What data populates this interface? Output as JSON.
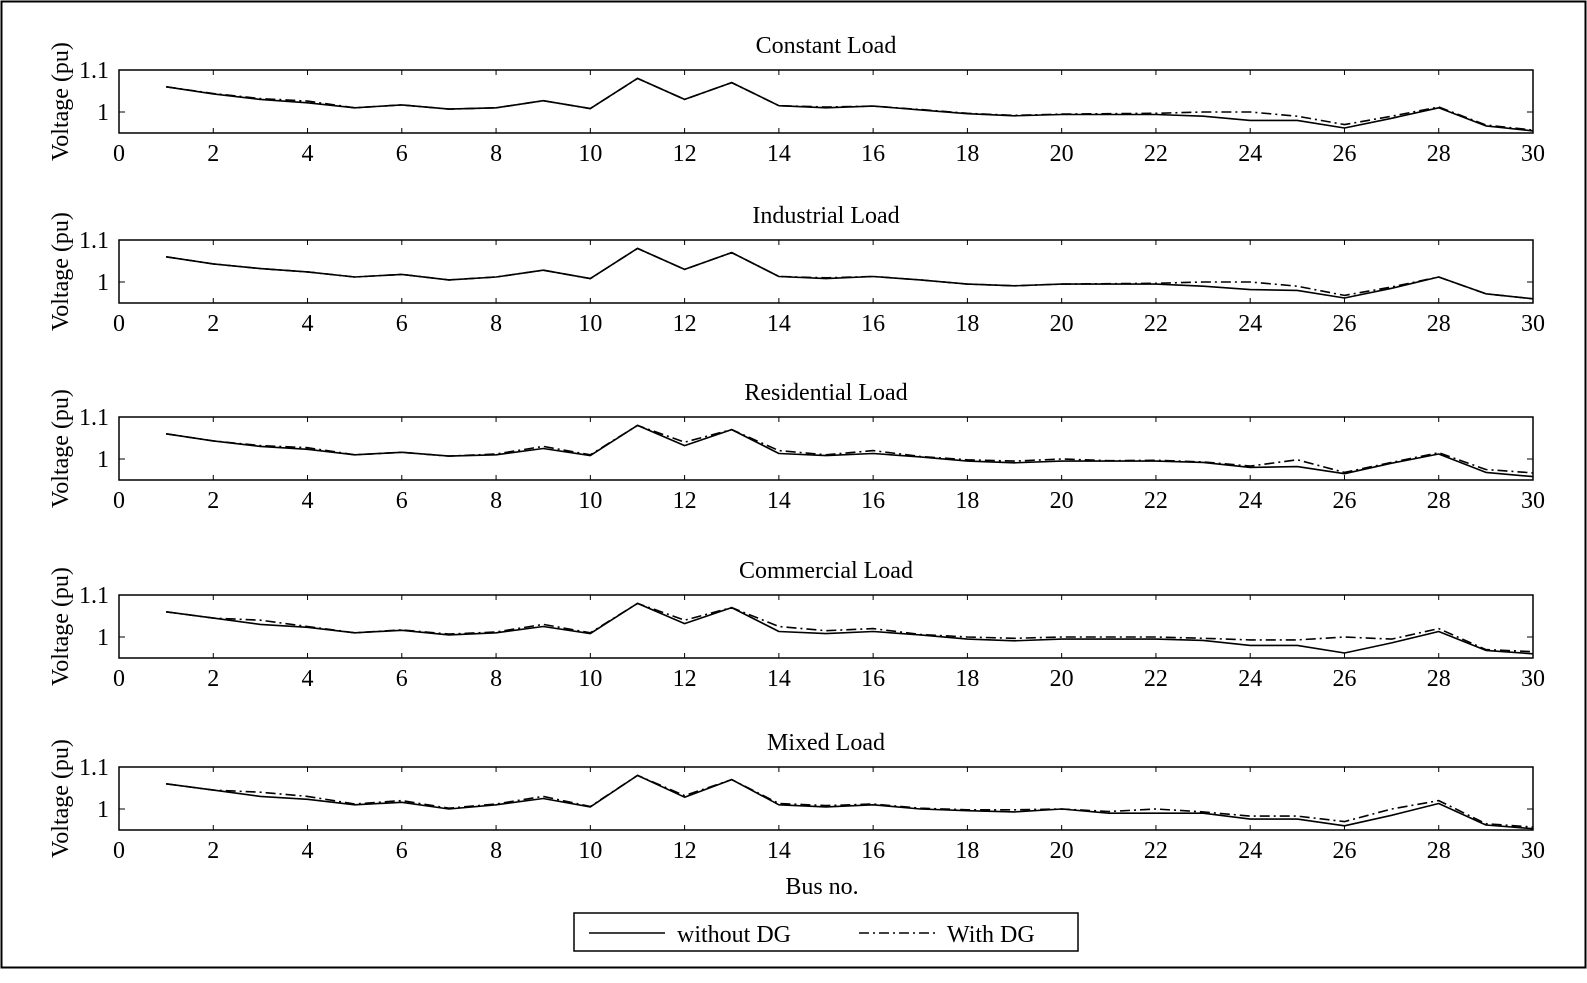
{
  "figure": {
    "xlabel": "Bus no.",
    "legend": {
      "placement": "bottom-center",
      "entries": [
        {
          "name": "without DG",
          "style": "solid"
        },
        {
          "name": "With DG",
          "style": "dash-dot"
        }
      ]
    },
    "colors": {
      "line": "#000000",
      "background": "#ffffff"
    }
  },
  "chart_data": [
    {
      "type": "line",
      "title": "Constant Load",
      "ylabel": "Voltage (pu)",
      "xlim": [
        0,
        30
      ],
      "ylim": [
        0.95,
        1.1
      ],
      "xticks": [
        0,
        2,
        4,
        6,
        8,
        10,
        12,
        14,
        16,
        18,
        20,
        22,
        24,
        26,
        28,
        30
      ],
      "yticks": [
        1,
        1.1
      ],
      "ytick_labels": [
        "1",
        "1.1"
      ],
      "grid": false,
      "x": [
        1,
        2,
        3,
        4,
        5,
        6,
        7,
        8,
        9,
        10,
        11,
        12,
        13,
        14,
        15,
        16,
        17,
        18,
        19,
        20,
        21,
        22,
        23,
        24,
        25,
        26,
        27,
        28,
        29,
        30
      ],
      "series": [
        {
          "name": "without DG",
          "style": "solid",
          "values": [
            1.06,
            1.043,
            1.03,
            1.022,
            1.01,
            1.017,
            1.007,
            1.01,
            1.027,
            1.008,
            1.08,
            1.03,
            1.07,
            1.015,
            1.01,
            1.014,
            1.005,
            0.996,
            0.991,
            0.994,
            0.994,
            0.994,
            0.99,
            0.98,
            0.98,
            0.962,
            0.985,
            1.01,
            0.967,
            0.955
          ]
        },
        {
          "name": "With DG",
          "style": "dash-dot",
          "values": [
            1.06,
            1.044,
            1.032,
            1.026,
            1.01,
            1.017,
            1.007,
            1.01,
            1.027,
            1.008,
            1.08,
            1.03,
            1.07,
            1.015,
            1.012,
            1.014,
            1.006,
            0.997,
            0.992,
            0.995,
            0.996,
            0.997,
            1.0,
            1.0,
            0.99,
            0.97,
            0.99,
            1.012,
            0.969,
            0.957
          ]
        }
      ]
    },
    {
      "type": "line",
      "title": "Industrial Load",
      "ylabel": "Voltage (pu)",
      "xlim": [
        0,
        30
      ],
      "ylim": [
        0.95,
        1.1
      ],
      "xticks": [
        0,
        2,
        4,
        6,
        8,
        10,
        12,
        14,
        16,
        18,
        20,
        22,
        24,
        26,
        28,
        30
      ],
      "yticks": [
        1,
        1.1
      ],
      "ytick_labels": [
        "1",
        "1.1"
      ],
      "grid": false,
      "x": [
        1,
        2,
        3,
        4,
        5,
        6,
        7,
        8,
        9,
        10,
        11,
        12,
        13,
        14,
        15,
        16,
        17,
        18,
        19,
        20,
        21,
        22,
        23,
        24,
        25,
        26,
        27,
        28,
        29,
        30
      ],
      "series": [
        {
          "name": "without DG",
          "style": "solid",
          "values": [
            1.06,
            1.043,
            1.032,
            1.024,
            1.012,
            1.018,
            1.005,
            1.012,
            1.028,
            1.008,
            1.08,
            1.03,
            1.07,
            1.013,
            1.008,
            1.013,
            1.005,
            0.995,
            0.991,
            0.995,
            0.995,
            0.995,
            0.99,
            0.982,
            0.98,
            0.962,
            0.985,
            1.012,
            0.972,
            0.96
          ]
        },
        {
          "name": "With DG",
          "style": "dash-dot",
          "values": [
            1.06,
            1.043,
            1.032,
            1.024,
            1.012,
            1.018,
            1.005,
            1.012,
            1.028,
            1.008,
            1.08,
            1.03,
            1.07,
            1.013,
            1.01,
            1.013,
            1.005,
            0.995,
            0.991,
            0.995,
            0.996,
            0.997,
            1.0,
            1.0,
            0.99,
            0.968,
            0.988,
            1.012,
            0.972,
            0.96
          ]
        }
      ]
    },
    {
      "type": "line",
      "title": "Residential Load",
      "ylabel": "Voltage (pu)",
      "xlim": [
        0,
        30
      ],
      "ylim": [
        0.95,
        1.1
      ],
      "xticks": [
        0,
        2,
        4,
        6,
        8,
        10,
        12,
        14,
        16,
        18,
        20,
        22,
        24,
        26,
        28,
        30
      ],
      "yticks": [
        1,
        1.1
      ],
      "ytick_labels": [
        "1",
        "1.1"
      ],
      "grid": false,
      "x": [
        1,
        2,
        3,
        4,
        5,
        6,
        7,
        8,
        9,
        10,
        11,
        12,
        13,
        14,
        15,
        16,
        17,
        18,
        19,
        20,
        21,
        22,
        23,
        24,
        25,
        26,
        27,
        28,
        29,
        30
      ],
      "series": [
        {
          "name": "without DG",
          "style": "solid",
          "values": [
            1.06,
            1.043,
            1.03,
            1.023,
            1.01,
            1.016,
            1.007,
            1.01,
            1.025,
            1.008,
            1.08,
            1.032,
            1.07,
            1.013,
            1.008,
            1.013,
            1.005,
            0.995,
            0.991,
            0.995,
            0.995,
            0.995,
            0.992,
            0.98,
            0.982,
            0.965,
            0.99,
            1.012,
            0.968,
            0.958
          ]
        },
        {
          "name": "With DG",
          "style": "dash-dot",
          "values": [
            1.06,
            1.043,
            1.032,
            1.027,
            1.01,
            1.016,
            1.007,
            1.012,
            1.03,
            1.01,
            1.08,
            1.04,
            1.07,
            1.02,
            1.01,
            1.02,
            1.006,
            0.998,
            0.995,
            1.0,
            0.996,
            0.997,
            0.993,
            0.983,
            0.998,
            0.968,
            0.992,
            1.015,
            0.975,
            0.967
          ]
        }
      ]
    },
    {
      "type": "line",
      "title": "Commercial Load",
      "ylabel": "Voltage (pu)",
      "xlim": [
        0,
        30
      ],
      "ylim": [
        0.95,
        1.1
      ],
      "xticks": [
        0,
        2,
        4,
        6,
        8,
        10,
        12,
        14,
        16,
        18,
        20,
        22,
        24,
        26,
        28,
        30
      ],
      "yticks": [
        1,
        1.1
      ],
      "ytick_labels": [
        "1",
        "1.1"
      ],
      "grid": false,
      "x": [
        1,
        2,
        3,
        4,
        5,
        6,
        7,
        8,
        9,
        10,
        11,
        12,
        13,
        14,
        15,
        16,
        17,
        18,
        19,
        20,
        21,
        22,
        23,
        24,
        25,
        26,
        27,
        28,
        29,
        30
      ],
      "series": [
        {
          "name": "without DG",
          "style": "solid",
          "values": [
            1.06,
            1.045,
            1.03,
            1.023,
            1.01,
            1.016,
            1.005,
            1.01,
            1.025,
            1.008,
            1.08,
            1.032,
            1.07,
            1.013,
            1.008,
            1.013,
            1.005,
            0.995,
            0.991,
            0.995,
            0.995,
            0.995,
            0.992,
            0.98,
            0.98,
            0.962,
            0.986,
            1.013,
            0.968,
            0.96
          ]
        },
        {
          "name": "With DG",
          "style": "dash-dot",
          "values": [
            1.06,
            1.045,
            1.04,
            1.025,
            1.01,
            1.017,
            1.007,
            1.012,
            1.03,
            1.01,
            1.08,
            1.04,
            1.07,
            1.025,
            1.015,
            1.02,
            1.006,
            1.0,
            0.997,
            1.0,
            1.0,
            1.0,
            0.997,
            0.993,
            0.993,
            1.0,
            0.995,
            1.02,
            0.97,
            0.965
          ]
        }
      ]
    },
    {
      "type": "line",
      "title": "Mixed Load",
      "ylabel": "Voltage (pu)",
      "xlim": [
        0,
        30
      ],
      "ylim": [
        0.95,
        1.1
      ],
      "xticks": [
        0,
        2,
        4,
        6,
        8,
        10,
        12,
        14,
        16,
        18,
        20,
        22,
        24,
        26,
        28,
        30
      ],
      "yticks": [
        1,
        1.1
      ],
      "ytick_labels": [
        "1",
        "1.1"
      ],
      "grid": false,
      "x": [
        1,
        2,
        3,
        4,
        5,
        6,
        7,
        8,
        9,
        10,
        11,
        12,
        13,
        14,
        15,
        16,
        17,
        18,
        19,
        20,
        21,
        22,
        23,
        24,
        25,
        26,
        27,
        28,
        29,
        30
      ],
      "series": [
        {
          "name": "without DG",
          "style": "solid",
          "values": [
            1.06,
            1.045,
            1.03,
            1.023,
            1.01,
            1.016,
            1.0,
            1.01,
            1.025,
            1.005,
            1.08,
            1.028,
            1.07,
            1.01,
            1.005,
            1.01,
            1.0,
            0.996,
            0.993,
            1.0,
            0.99,
            0.99,
            0.99,
            0.976,
            0.976,
            0.96,
            0.985,
            1.013,
            0.962,
            0.953
          ]
        },
        {
          "name": "With DG",
          "style": "dash-dot",
          "values": [
            1.06,
            1.045,
            1.04,
            1.03,
            1.012,
            1.02,
            1.002,
            1.012,
            1.03,
            1.006,
            1.08,
            1.032,
            1.07,
            1.013,
            1.008,
            1.012,
            1.002,
            0.998,
            0.998,
            1.0,
            0.994,
            1.0,
            0.993,
            0.983,
            0.983,
            0.97,
            1.0,
            1.02,
            0.965,
            0.957
          ]
        }
      ]
    }
  ]
}
